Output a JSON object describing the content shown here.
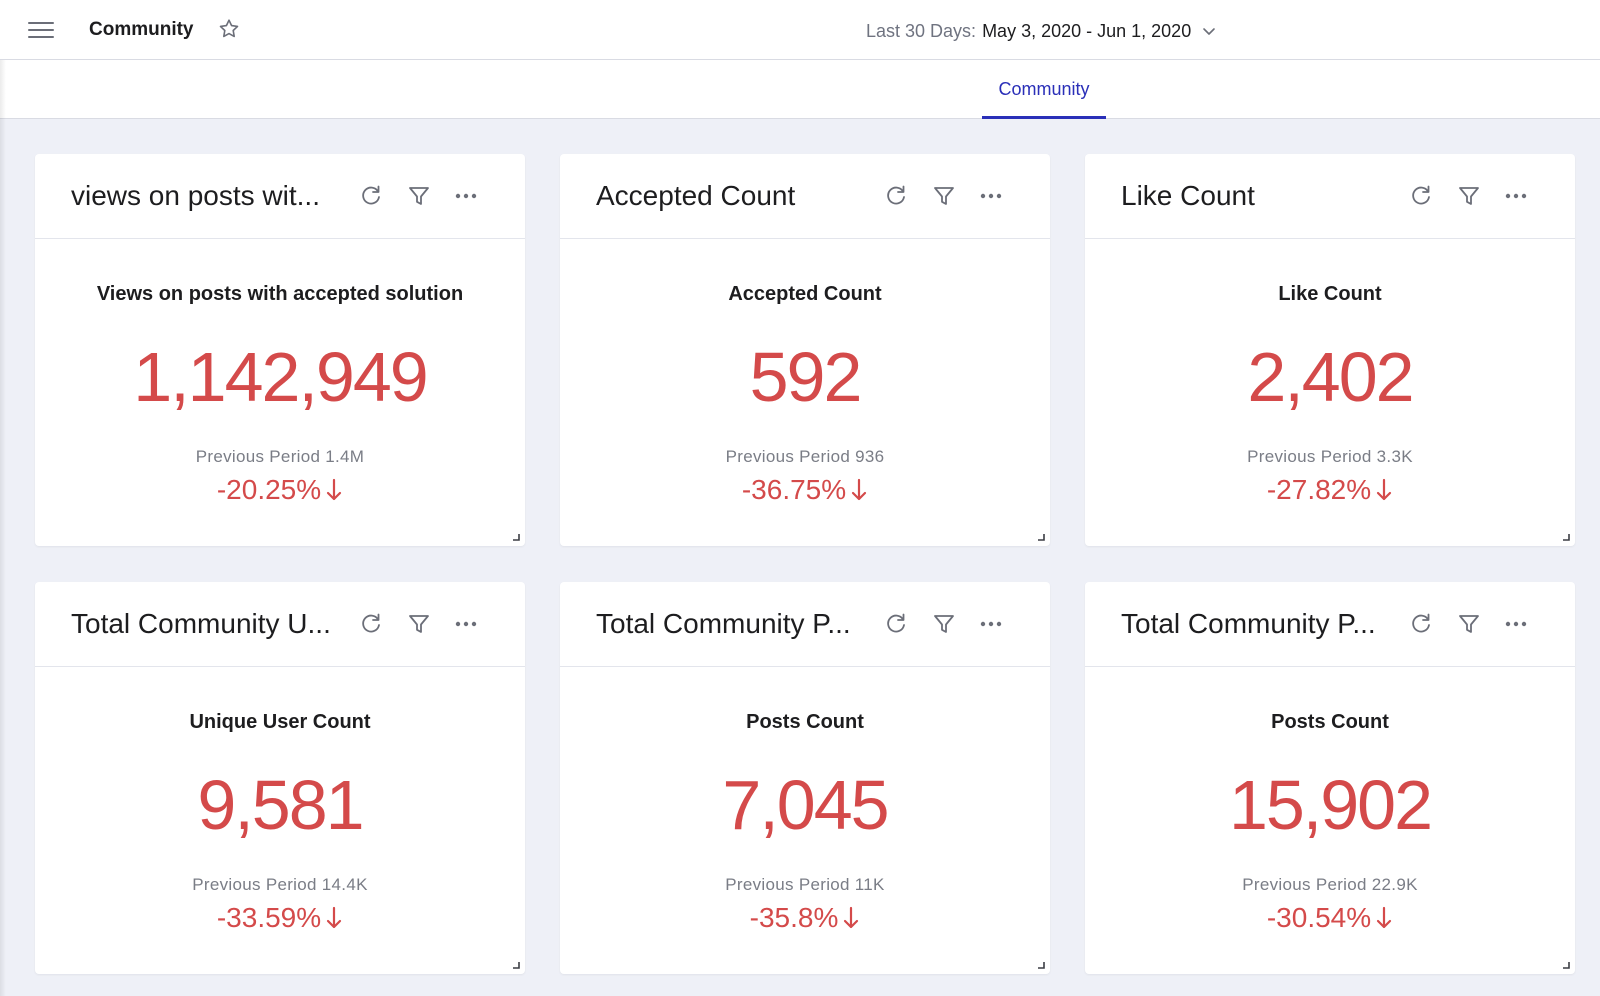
{
  "header": {
    "title": "Community",
    "date_prefix": "Last 30 Days:",
    "date_range": "May 3, 2020 - Jun 1, 2020"
  },
  "tabs": [
    {
      "label": "Community",
      "active": true
    }
  ],
  "colors": {
    "accent": "#2a2fb8",
    "negative": "#d44a4a"
  },
  "cards": [
    {
      "title": "views on posts wit...",
      "metric_label": "Views on posts with accepted solution",
      "value": "1,142,949",
      "previous": "Previous Period 1.4M",
      "change": "-20.25%"
    },
    {
      "title": "Accepted Count",
      "metric_label": "Accepted Count",
      "value": "592",
      "previous": "Previous Period 936",
      "change": "-36.75%"
    },
    {
      "title": "Like Count",
      "metric_label": "Like Count",
      "value": "2,402",
      "previous": "Previous Period 3.3K",
      "change": "-27.82%"
    },
    {
      "title": "Total Community U...",
      "metric_label": "Unique User Count",
      "value": "9,581",
      "previous": "Previous Period 14.4K",
      "change": "-33.59%"
    },
    {
      "title": "Total Community P...",
      "metric_label": "Posts Count",
      "value": "7,045",
      "previous": "Previous Period 11K",
      "change": "-35.8%"
    },
    {
      "title": "Total Community P...",
      "metric_label": "Posts Count",
      "value": "15,902",
      "previous": "Previous Period 22.9K",
      "change": "-30.54%"
    }
  ]
}
